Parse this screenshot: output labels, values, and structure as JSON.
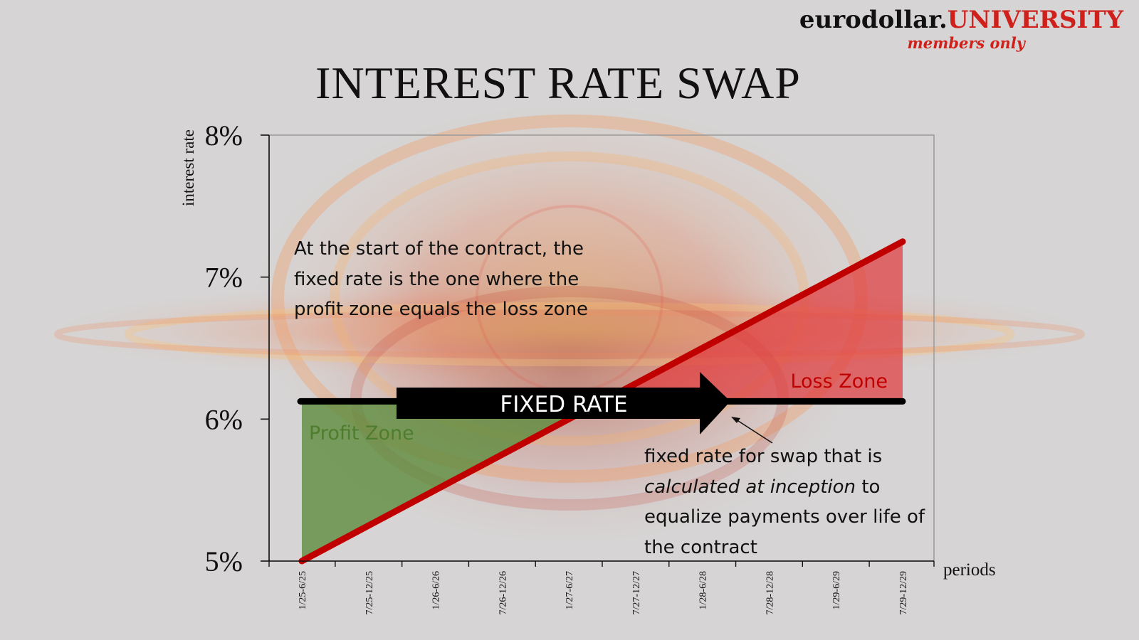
{
  "brand": {
    "name_dark": "eurodollar.",
    "name_red": "UNIVERSITY",
    "tagline": "members only"
  },
  "title": "INTEREST RATE SWAP",
  "annotations": {
    "start_note": "At the start of the contract, the fixed rate is the one where the profit zone equals the loss zone",
    "fixed_note_1": "fixed rate for swap that is",
    "fixed_note_em": "calculated at inception",
    "fixed_note_2": "to equalize payments over life of the contract",
    "fixed_rate_label": "FIXED RATE",
    "profit_zone": "Profit Zone",
    "loss_zone": "Loss Zone"
  },
  "colors": {
    "floating_line": "#c00000",
    "fixed_line": "#000000",
    "profit_fill": "#5b8a3a",
    "loss_fill": "#e0383a",
    "profit_text": "#4f7d2e",
    "loss_text": "#c00000"
  },
  "chart_data": {
    "type": "line",
    "title": "INTEREST RATE SWAP",
    "xlabel": "periods",
    "ylabel": "interest rate",
    "ylim": [
      5,
      8
    ],
    "yticks": [
      "5%",
      "6%",
      "7%",
      "8%"
    ],
    "categories": [
      "1/25-6/25",
      "7/25-12/25",
      "1/26-6/26",
      "7/26-12/26",
      "1/27-6/27",
      "7/27-12/27",
      "1/28-6/28",
      "7/28-12/28",
      "1/29-6/29",
      "7/29-12/29"
    ],
    "series": [
      {
        "name": "",
        "kind": "floating",
        "values": [
          5.0,
          5.25,
          5.5,
          5.75,
          6.0,
          6.25,
          6.5,
          6.75,
          7.0,
          7.25
        ]
      },
      {
        "name": "",
        "kind": "fixed",
        "values": [
          6.125,
          6.125,
          6.125,
          6.125,
          6.125,
          6.125,
          6.125,
          6.125,
          6.125,
          6.125
        ]
      }
    ],
    "grid": false,
    "legend": "none"
  }
}
